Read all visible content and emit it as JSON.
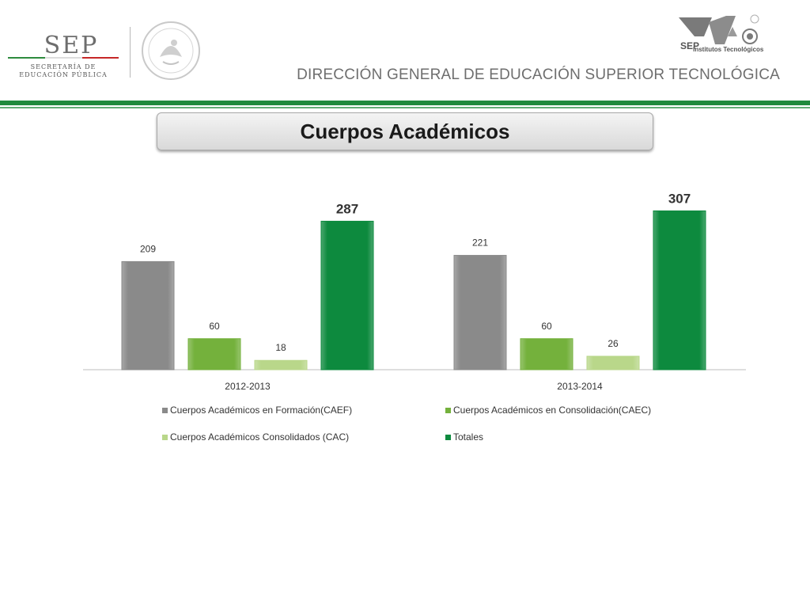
{
  "header": {
    "sep_word": "SEP",
    "sep_subtitle_1": "SECRETARÍA DE",
    "sep_subtitle_2": "EDUCACIÓN PÚBLICA",
    "it_caption": "Institutos Tecnológicos",
    "department": "DIRECCIÓN GENERAL DE EDUCACIÓN SUPERIOR TECNOLÓGICA"
  },
  "slide": {
    "title": "Cuerpos Académicos"
  },
  "colors": {
    "accent_green": "#1f8a3c",
    "caef": "#8a8a8a",
    "caec": "#74b13c",
    "cac": "#b9d78a",
    "totales": "#0d8a3e"
  },
  "chart_data": {
    "type": "bar",
    "categories": [
      "2012-2013",
      "2013-2014"
    ],
    "series": [
      {
        "name": "Cuerpos Académicos en Formación(CAEF)",
        "values": [
          209,
          221
        ]
      },
      {
        "name": "Cuerpos Académicos en Consolidación(CAEC)",
        "values": [
          60,
          60
        ]
      },
      {
        "name": "Cuerpos Académicos Consolidados (CAC)",
        "values": [
          18,
          26
        ]
      },
      {
        "name": "Totales",
        "values": [
          287,
          307
        ]
      }
    ],
    "ylim": [
      0,
      320
    ],
    "grid": false,
    "legend_position": "bottom",
    "totals_labels_bold": true
  }
}
